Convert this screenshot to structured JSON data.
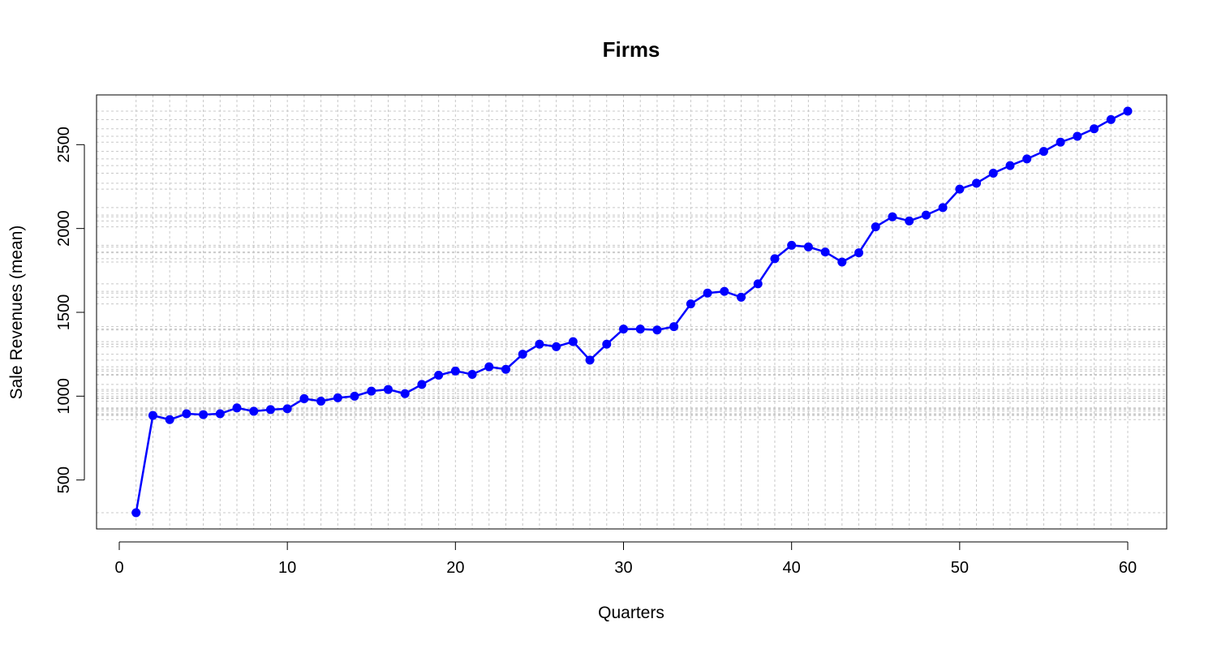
{
  "chart_data": {
    "type": "line",
    "title": "Firms",
    "xlabel": "Quarters",
    "ylabel": "Sale Revenues (mean)",
    "xlim": [
      0,
      60
    ],
    "ylim": [
      300,
      2700
    ],
    "x_ticks": [
      0,
      10,
      20,
      30,
      40,
      50,
      60
    ],
    "y_ticks": [
      500,
      1000,
      1500,
      2000,
      2500
    ],
    "grid": true,
    "series": [
      {
        "color": "#0000ff",
        "x": [
          1,
          2,
          3,
          4,
          5,
          6,
          7,
          8,
          9,
          10,
          11,
          12,
          13,
          14,
          15,
          16,
          17,
          18,
          19,
          20,
          21,
          22,
          23,
          24,
          25,
          26,
          27,
          28,
          29,
          30,
          31,
          32,
          33,
          34,
          35,
          36,
          37,
          38,
          39,
          40,
          41,
          42,
          43,
          44,
          45,
          46,
          47,
          48,
          49,
          50,
          51,
          52,
          53,
          54,
          55,
          56,
          57,
          58,
          59,
          60
        ],
        "values": [
          305,
          885,
          860,
          895,
          890,
          895,
          930,
          910,
          920,
          925,
          985,
          970,
          990,
          1000,
          1030,
          1040,
          1015,
          1070,
          1125,
          1150,
          1130,
          1175,
          1160,
          1250,
          1310,
          1295,
          1325,
          1215,
          1310,
          1400,
          1400,
          1395,
          1415,
          1550,
          1615,
          1625,
          1590,
          1670,
          1820,
          1900,
          1890,
          1860,
          1800,
          1855,
          2010,
          2070,
          2045,
          2080,
          2125,
          2235,
          2270,
          2330,
          2375,
          2415,
          2460,
          2515,
          2550,
          2595,
          2650,
          2700
        ]
      }
    ]
  }
}
